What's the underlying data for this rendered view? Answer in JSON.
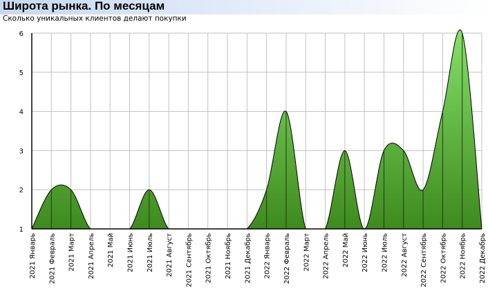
{
  "header": {
    "title": "Широта рынка. По месяцам",
    "subtitle": "Сколько уникальных клиентов делают покупки"
  },
  "colors": {
    "fill_top": "#86e06a",
    "fill_bottom": "#3e8a1e",
    "outline": "#000000",
    "grid": "#c0c0c0",
    "header_gradient_start": "#c8d8f0"
  },
  "chart_data": {
    "type": "area",
    "categories": [
      "2021 Январь",
      "2021 Февраль",
      "2021 Март",
      "2021 Апрель",
      "2021 Май",
      "2021 Июнь",
      "2021 Июль",
      "2021 Август",
      "2021 Сентябрь",
      "2021 Октябрь",
      "2021 Ноябрь",
      "2021 Декабрь",
      "2022 Январь",
      "2022 Февраль",
      "2022 Март",
      "2022 Апрель",
      "2022 Май",
      "2022 Июнь",
      "2022 Июль",
      "2022 Август",
      "2022 Сентябрь",
      "2022 Октябрь",
      "2022 Ноябрь",
      "2022 Декабрь"
    ],
    "values": [
      1,
      2,
      2,
      1,
      1,
      1,
      2,
      1,
      1,
      1,
      1,
      1,
      2,
      4,
      1,
      1,
      3,
      1,
      3,
      3,
      2,
      4,
      6,
      1
    ],
    "ylim": [
      1,
      6
    ],
    "yticks": [
      1,
      2,
      3,
      4,
      5,
      6
    ],
    "grid": true,
    "smooth": true,
    "legend": "none"
  }
}
